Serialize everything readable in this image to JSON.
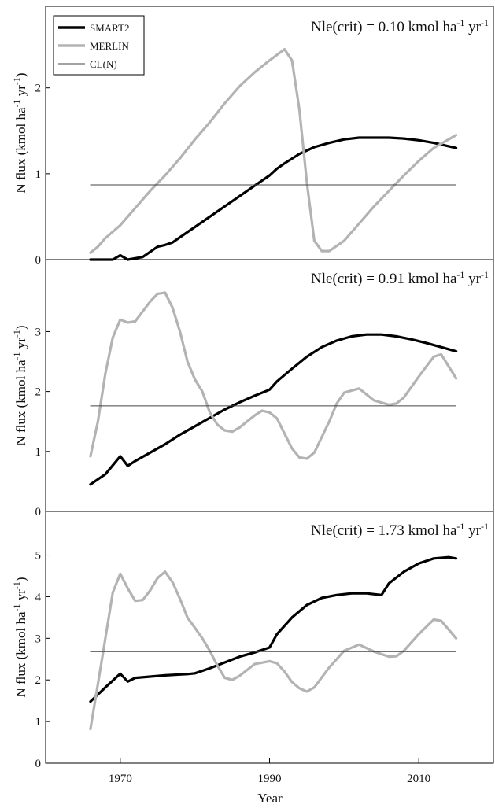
{
  "chart_data": [
    {
      "type": "line",
      "title": {
        "main": "Nle(crit) = 0.10 kmol ha",
        "sup1": "-1",
        "mid": " yr",
        "sup2": "-1"
      },
      "ylabel": {
        "main": "N flux (kmol ha",
        "sup1": "-1",
        "mid": " yr",
        "sup2": "-1",
        "end": ")"
      },
      "ylim": [
        0,
        2.95
      ],
      "yticks": [
        0,
        1,
        2
      ],
      "xlim": [
        1960,
        2020
      ],
      "legend_position": "top-left",
      "series": [
        {
          "name": "SMART2",
          "color": "#000000",
          "x": [
            1966,
            1969,
            1970,
            1971,
            1973,
            1975,
            1976,
            1977,
            1978,
            1980,
            1982,
            1984,
            1986,
            1988,
            1990,
            1991,
            1992,
            1994,
            1996,
            1998,
            2000,
            2002,
            2004,
            2006,
            2008,
            2010,
            2012,
            2014,
            2015
          ],
          "y": [
            0,
            0,
            0.05,
            0,
            0.03,
            0.15,
            0.17,
            0.2,
            0.26,
            0.38,
            0.5,
            0.62,
            0.74,
            0.86,
            0.98,
            1.06,
            1.12,
            1.23,
            1.31,
            1.36,
            1.4,
            1.42,
            1.42,
            1.42,
            1.41,
            1.39,
            1.36,
            1.32,
            1.3
          ]
        },
        {
          "name": "MERLIN",
          "color": "#b3b3b3",
          "x": [
            1966,
            1967,
            1968,
            1970,
            1972,
            1974,
            1976,
            1978,
            1980,
            1982,
            1984,
            1986,
            1988,
            1990,
            1992,
            1993,
            1994,
            1995,
            1996,
            1997,
            1998,
            2000,
            2002,
            2004,
            2006,
            2008,
            2010,
            2012,
            2014,
            2015
          ],
          "y": [
            0.08,
            0.15,
            0.25,
            0.4,
            0.6,
            0.8,
            0.98,
            1.18,
            1.4,
            1.6,
            1.82,
            2.02,
            2.18,
            2.32,
            2.45,
            2.32,
            1.75,
            0.9,
            0.22,
            0.1,
            0.1,
            0.22,
            0.42,
            0.62,
            0.8,
            0.98,
            1.15,
            1.3,
            1.4,
            1.45
          ]
        },
        {
          "name": "CL(N)",
          "color": "#444444",
          "x": [
            1966,
            2015
          ],
          "y": [
            0.87,
            0.87
          ]
        }
      ]
    },
    {
      "type": "line",
      "title": {
        "main": "Nle(crit) = 0.91 kmol ha",
        "sup1": "-1",
        "mid": " yr",
        "sup2": "-1"
      },
      "ylabel": {
        "main": "N flux (kmol ha",
        "sup1": "-1",
        "mid": " yr",
        "sup2": "-1",
        "end": ")"
      },
      "ylim": [
        0,
        4.2
      ],
      "yticks": [
        0,
        1,
        2,
        3
      ],
      "xlim": [
        1960,
        2020
      ],
      "series": [
        {
          "name": "SMART2",
          "color": "#000000",
          "x": [
            1966,
            1968,
            1970,
            1971,
            1972,
            1974,
            1976,
            1978,
            1980,
            1982,
            1984,
            1986,
            1988,
            1990,
            1991,
            1993,
            1995,
            1997,
            1999,
            2001,
            2003,
            2005,
            2007,
            2009,
            2011,
            2013,
            2015
          ],
          "y": [
            0.45,
            0.62,
            0.92,
            0.76,
            0.84,
            0.98,
            1.12,
            1.28,
            1.42,
            1.56,
            1.7,
            1.82,
            1.93,
            2.03,
            2.17,
            2.38,
            2.58,
            2.74,
            2.85,
            2.92,
            2.95,
            2.95,
            2.92,
            2.87,
            2.81,
            2.74,
            2.67
          ]
        },
        {
          "name": "MERLIN",
          "color": "#b3b3b3",
          "x": [
            1966,
            1967,
            1968,
            1969,
            1970,
            1971,
            1972,
            1974,
            1975,
            1976,
            1977,
            1978,
            1979,
            1980,
            1981,
            1982,
            1983,
            1984,
            1985,
            1986,
            1988,
            1989,
            1990,
            1991,
            1992,
            1993,
            1994,
            1995,
            1996,
            1998,
            1999,
            2000,
            2002,
            2004,
            2006,
            2007,
            2008,
            2010,
            2012,
            2013,
            2015
          ],
          "y": [
            0.92,
            1.5,
            2.3,
            2.9,
            3.2,
            3.15,
            3.17,
            3.5,
            3.63,
            3.65,
            3.4,
            3.0,
            2.5,
            2.2,
            2.0,
            1.65,
            1.45,
            1.35,
            1.33,
            1.4,
            1.6,
            1.68,
            1.65,
            1.55,
            1.3,
            1.05,
            0.9,
            0.88,
            0.98,
            1.5,
            1.8,
            1.98,
            2.05,
            1.85,
            1.78,
            1.8,
            1.9,
            2.25,
            2.58,
            2.62,
            2.22
          ]
        },
        {
          "name": "CL(N)",
          "color": "#444444",
          "x": [
            1966,
            2015
          ],
          "y": [
            1.76,
            1.76
          ]
        }
      ]
    },
    {
      "type": "line",
      "title": {
        "main": "Nle(crit) = 1.73 kmol ha",
        "sup1": "-1",
        "mid": " yr",
        "sup2": "-1"
      },
      "ylabel": {
        "main": "N flux (kmol ha",
        "sup1": "-1",
        "mid": " yr",
        "sup2": "-1",
        "end": ")"
      },
      "xlabel": "Year",
      "ylim": [
        0,
        6.05
      ],
      "yticks": [
        0,
        1,
        2,
        3,
        4,
        5
      ],
      "xlim": [
        1960,
        2020
      ],
      "xticks": [
        1970,
        1990,
        2010
      ],
      "series": [
        {
          "name": "SMART2",
          "color": "#000000",
          "x": [
            1966,
            1968,
            1970,
            1971,
            1972,
            1974,
            1976,
            1978,
            1979,
            1980,
            1982,
            1984,
            1986,
            1988,
            1990,
            1991,
            1993,
            1995,
            1997,
            1999,
            2001,
            2003,
            2005,
            2006,
            2008,
            2010,
            2012,
            2014,
            2015
          ],
          "y": [
            1.48,
            1.82,
            2.15,
            1.96,
            2.05,
            2.08,
            2.11,
            2.13,
            2.14,
            2.16,
            2.28,
            2.42,
            2.56,
            2.66,
            2.78,
            3.1,
            3.5,
            3.8,
            3.97,
            4.04,
            4.08,
            4.08,
            4.04,
            4.32,
            4.6,
            4.8,
            4.92,
            4.95,
            4.92
          ]
        },
        {
          "name": "MERLIN",
          "color": "#b3b3b3",
          "x": [
            1966,
            1967,
            1968,
            1969,
            1970,
            1971,
            1972,
            1973,
            1974,
            1975,
            1976,
            1977,
            1978,
            1979,
            1980,
            1981,
            1982,
            1983,
            1984,
            1985,
            1986,
            1988,
            1990,
            1991,
            1992,
            1993,
            1994,
            1995,
            1996,
            1998,
            2000,
            2002,
            2004,
            2006,
            2007,
            2008,
            2010,
            2012,
            2013,
            2015
          ],
          "y": [
            0.82,
            1.9,
            3.0,
            4.1,
            4.55,
            4.2,
            3.9,
            3.92,
            4.15,
            4.45,
            4.6,
            4.35,
            3.95,
            3.5,
            3.25,
            3.0,
            2.7,
            2.35,
            2.05,
            2.0,
            2.1,
            2.38,
            2.45,
            2.4,
            2.2,
            1.95,
            1.8,
            1.72,
            1.82,
            2.3,
            2.7,
            2.85,
            2.68,
            2.56,
            2.57,
            2.7,
            3.1,
            3.45,
            3.42,
            3.0
          ]
        },
        {
          "name": "CL(N)",
          "color": "#444444",
          "x": [
            1966,
            2015
          ],
          "y": [
            2.68,
            2.68
          ]
        }
      ]
    }
  ]
}
